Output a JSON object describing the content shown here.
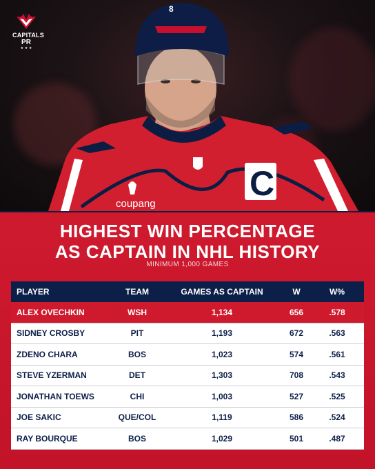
{
  "logo": {
    "line1": "CAPITALS",
    "line2": "PR",
    "stars": "★ ★ ★"
  },
  "player_photo": {
    "jersey_sponsor": "coupang",
    "captain_letter": "C",
    "helmet_number": "8"
  },
  "title": {
    "line1": "HIGHEST WIN PERCENTAGE",
    "line2": "AS CAPTAIN IN NHL HISTORY",
    "subtitle": "MINIMUM 1,000 GAMES"
  },
  "table": {
    "headers": {
      "player": "PLAYER",
      "team": "TEAM",
      "games": "GAMES AS CAPTAIN",
      "w": "W",
      "pct": "W%"
    },
    "rows": [
      {
        "player": "ALEX OVECHKIN",
        "team": "WSH",
        "games": "1,134",
        "w": "656",
        "pct": ".578"
      },
      {
        "player": "SIDNEY CROSBY",
        "team": "PIT",
        "games": "1,193",
        "w": "672",
        "pct": ".563"
      },
      {
        "player": "ZDENO CHARA",
        "team": "BOS",
        "games": "1,023",
        "w": "574",
        "pct": ".561"
      },
      {
        "player": "STEVE YZERMAN",
        "team": "DET",
        "games": "1,303",
        "w": "708",
        "pct": ".543"
      },
      {
        "player": "JONATHAN TOEWS",
        "team": "CHI",
        "games": "1,003",
        "w": "527",
        "pct": ".525"
      },
      {
        "player": "JOE SAKIC",
        "team": "QUE/COL",
        "games": "1,119",
        "w": "586",
        "pct": ".524"
      },
      {
        "player": "RAY BOURQUE",
        "team": "BOS",
        "games": "1,029",
        "w": "501",
        "pct": ".487"
      }
    ]
  },
  "colors": {
    "red": "#cf1a2e",
    "navy": "#0c1f48",
    "white": "#ffffff"
  }
}
